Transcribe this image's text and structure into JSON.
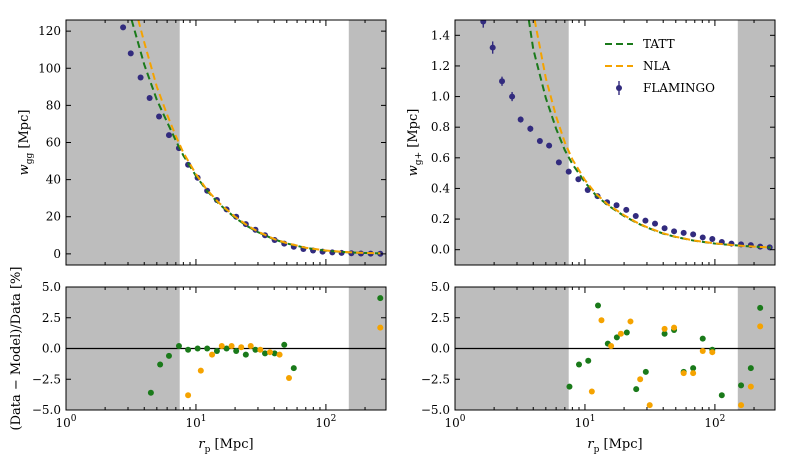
{
  "chart_data": [
    {
      "type": "scatter",
      "panel": "top-left",
      "ylabel_main": "w",
      "ylabel_sub": "gg",
      "ylabel_unit": "[Mpc]",
      "xscale": "log",
      "xlim": [
        1,
        290
      ],
      "ylim": [
        -6,
        126
      ],
      "yticks": [
        0,
        20,
        40,
        60,
        80,
        100,
        120
      ],
      "yticklabels": [
        "0",
        "20",
        "40",
        "60",
        "80",
        "100",
        "120"
      ],
      "shaded": [
        [
          1,
          7.5
        ],
        [
          150,
          290
        ]
      ],
      "series": [
        {
          "name": "FLAMINGO",
          "kind": "points",
          "color": "#322b7e",
          "x": [
            2.75,
            3.15,
            3.75,
            4.4,
            5.2,
            6.2,
            7.4,
            8.7,
            10.3,
            12.2,
            14.5,
            17.2,
            20.4,
            24.2,
            28.7,
            34,
            40.3,
            47.8,
            56.6,
            67.1,
            79.6,
            94.3,
            112,
            132,
            157,
            186,
            221,
            262
          ],
          "y": [
            122,
            108,
            95,
            84,
            74,
            64,
            57,
            48,
            41,
            34,
            29,
            24,
            20,
            16,
            13,
            10,
            7.5,
            5.5,
            3.8,
            2.6,
            1.8,
            1.2,
            0.8,
            0.5,
            0.3,
            0.2,
            0.1,
            0.05
          ]
        },
        {
          "name": "TATT",
          "kind": "line",
          "dash": "7,4",
          "color": "#1a7a1a",
          "x": [
            3.2,
            4,
            5,
            6,
            7,
            8,
            10,
            12,
            15,
            20,
            25,
            30,
            40,
            50,
            70,
            100,
            150,
            200,
            262
          ],
          "y": [
            126,
            102,
            83,
            71,
            61,
            53,
            42,
            34.5,
            27,
            19.5,
            14.8,
            11.7,
            7.8,
            5.6,
            3.2,
            1.7,
            0.8,
            0.45,
            0.25
          ]
        },
        {
          "name": "NLA",
          "kind": "line",
          "dash": "7,4",
          "color": "#f5a300",
          "x": [
            3.6,
            4,
            5,
            6,
            7,
            8,
            10,
            12,
            15,
            20,
            25,
            30,
            40,
            50,
            70,
            100,
            150,
            200,
            262
          ],
          "y": [
            126,
            114,
            90,
            75,
            63.5,
            54.5,
            43,
            35,
            27.5,
            20,
            15.2,
            12,
            8,
            5.8,
            3.3,
            1.8,
            0.85,
            0.5,
            0.28
          ]
        }
      ]
    },
    {
      "type": "scatter",
      "panel": "top-right",
      "ylabel_main": "w",
      "ylabel_sub": "g+",
      "ylabel_unit": "[Mpc]",
      "xscale": "log",
      "xlim": [
        1,
        290
      ],
      "ylim": [
        -0.1,
        1.5
      ],
      "yticks": [
        0,
        0.2,
        0.4,
        0.6,
        0.8,
        1.0,
        1.2,
        1.4
      ],
      "yticklabels": [
        "0.0",
        "0.2",
        "0.4",
        "0.6",
        "0.8",
        "1.0",
        "1.2",
        "1.4"
      ],
      "shaded": [
        [
          1,
          7.5
        ],
        [
          150,
          290
        ]
      ],
      "legend": {
        "position": "upper-right",
        "entries": [
          "TATT",
          "NLA",
          "FLAMINGO"
        ]
      },
      "series": [
        {
          "name": "FLAMINGO",
          "kind": "points",
          "errorbars": true,
          "color": "#322b7e",
          "x": [
            1.65,
            1.95,
            2.3,
            2.75,
            3.2,
            3.8,
            4.5,
            5.3,
            6.3,
            7.5,
            8.9,
            10.5,
            12.5,
            14.8,
            17.5,
            20.8,
            24.6,
            29.2,
            34.6,
            41,
            48.5,
            57.5,
            68,
            80.6,
            95.5,
            113,
            134,
            159,
            189,
            223,
            264
          ],
          "y": [
            1.49,
            1.32,
            1.1,
            1.0,
            0.85,
            0.79,
            0.71,
            0.68,
            0.57,
            0.51,
            0.46,
            0.39,
            0.35,
            0.31,
            0.29,
            0.26,
            0.22,
            0.19,
            0.17,
            0.14,
            0.12,
            0.11,
            0.1,
            0.08,
            0.07,
            0.05,
            0.04,
            0.035,
            0.03,
            0.02,
            0.015
          ],
          "err": [
            0.04,
            0.04,
            0.03,
            0.03,
            0.02,
            0.02,
            0.015,
            0.015,
            0.012,
            0.01,
            0.008,
            0.008,
            0.006,
            0.006,
            0.005,
            0.005,
            0.004,
            0.004,
            0.003,
            0.003,
            0.003,
            0.003,
            0.002,
            0.002,
            0.002,
            0.002,
            0.002,
            0.002,
            0.002,
            0.002,
            0.002
          ]
        },
        {
          "name": "TATT",
          "kind": "line",
          "dash": "7,4",
          "color": "#1a7a1a",
          "x": [
            3.7,
            4,
            5,
            6,
            7,
            8,
            10,
            12,
            15,
            20,
            25,
            30,
            40,
            50,
            70,
            100,
            150,
            200,
            270
          ],
          "y": [
            1.5,
            1.31,
            0.99,
            0.79,
            0.65,
            0.56,
            0.44,
            0.36,
            0.29,
            0.22,
            0.175,
            0.145,
            0.105,
            0.083,
            0.058,
            0.04,
            0.027,
            0.02,
            0.014
          ]
        },
        {
          "name": "NLA",
          "kind": "line",
          "dash": "7,4",
          "color": "#f5a300",
          "x": [
            4.1,
            5,
            6,
            7,
            8,
            10,
            12,
            15,
            20,
            25,
            30,
            40,
            50,
            70,
            100,
            150,
            200,
            270
          ],
          "y": [
            1.5,
            1.12,
            0.87,
            0.7,
            0.59,
            0.455,
            0.37,
            0.295,
            0.225,
            0.178,
            0.147,
            0.107,
            0.084,
            0.059,
            0.041,
            0.027,
            0.02,
            0.014
          ]
        }
      ]
    },
    {
      "type": "scatter",
      "panel": "bottom-left",
      "ylabel": "(Data − Model)/Data [%]",
      "xlabel_main": "r",
      "xlabel_sub": "p",
      "xlabel_unit": "[Mpc]",
      "xscale": "log",
      "xlim": [
        1,
        290
      ],
      "ylim": [
        -5,
        5
      ],
      "yticks": [
        -5,
        -2.5,
        0,
        2.5,
        5
      ],
      "yticklabels": [
        "−5.0",
        "−2.5",
        "0.0",
        "2.5",
        "5.0"
      ],
      "xticks": [
        1,
        10,
        100
      ],
      "xticklabels_base": [
        "10",
        "10",
        "10"
      ],
      "xticklabels_exp": [
        "0",
        "1",
        "2"
      ],
      "shaded": [
        [
          1,
          7.5
        ],
        [
          150,
          290
        ]
      ],
      "zero_line": true,
      "series": [
        {
          "name": "TATT",
          "kind": "points",
          "color": "#1a7a1a",
          "x": [
            4.5,
            5.3,
            6.2,
            7.4,
            8.7,
            10.3,
            12.2,
            14.5,
            17.2,
            20.4,
            24.2,
            28.7,
            34,
            40.3,
            47.8,
            56.6,
            262
          ],
          "y": [
            -3.6,
            -1.3,
            -0.6,
            0.2,
            -0.1,
            0.0,
            0.0,
            -0.2,
            0.0,
            -0.2,
            -0.5,
            -0.1,
            -0.4,
            -0.4,
            0.3,
            -1.6,
            4.1
          ]
        },
        {
          "name": "NLA",
          "kind": "points",
          "color": "#f5a300",
          "x": [
            8.7,
            10.9,
            13.3,
            15.8,
            18.8,
            22.3,
            26.4,
            31.3,
            37.1,
            44,
            52,
            262
          ],
          "y": [
            -3.8,
            -1.8,
            -0.5,
            0.2,
            0.2,
            0.1,
            0.2,
            -0.1,
            -0.3,
            -0.5,
            -2.4,
            1.7
          ]
        }
      ]
    },
    {
      "type": "scatter",
      "panel": "bottom-right",
      "xlabel_main": "r",
      "xlabel_sub": "p",
      "xlabel_unit": "[Mpc]",
      "xscale": "log",
      "xlim": [
        1,
        290
      ],
      "ylim": [
        -5,
        5
      ],
      "yticks": [
        -5,
        -2.5,
        0,
        2.5,
        5
      ],
      "yticklabels": [
        "−5.0",
        "−2.5",
        "0.0",
        "2.5",
        "5.0"
      ],
      "xticks": [
        1,
        10,
        100
      ],
      "xticklabels_base": [
        "10",
        "10",
        "10"
      ],
      "xticklabels_exp": [
        "0",
        "1",
        "2"
      ],
      "shaded": [
        [
          1,
          7.5
        ],
        [
          150,
          290
        ]
      ],
      "zero_line": true,
      "series": [
        {
          "name": "TATT",
          "kind": "points",
          "color": "#1a7a1a",
          "x": [
            7.6,
            9,
            10.6,
            12.6,
            15,
            17.6,
            21,
            24.8,
            29.4,
            41,
            48.5,
            57.5,
            68,
            80.6,
            95.5,
            113,
            159,
            189,
            223
          ],
          "y": [
            -3.1,
            -1.3,
            -1.0,
            3.5,
            0.4,
            0.9,
            1.3,
            -3.3,
            -1.9,
            1.2,
            1.5,
            -1.9,
            -1.6,
            0.8,
            -0.1,
            -3.8,
            -3.0,
            -1.6,
            3.3
          ]
        },
        {
          "name": "NLA",
          "kind": "points",
          "color": "#f5a300",
          "x": [
            11.3,
            13.4,
            15.9,
            18.9,
            22.4,
            26.6,
            31.5,
            41,
            48.5,
            57.5,
            68,
            80.6,
            95.5,
            159,
            189,
            223
          ],
          "y": [
            -3.5,
            2.3,
            0.2,
            1.2,
            2.2,
            -2.5,
            -4.6,
            1.6,
            1.7,
            -2.0,
            -2.0,
            -0.2,
            -0.3,
            -4.6,
            -3.1,
            1.8
          ]
        }
      ]
    }
  ]
}
